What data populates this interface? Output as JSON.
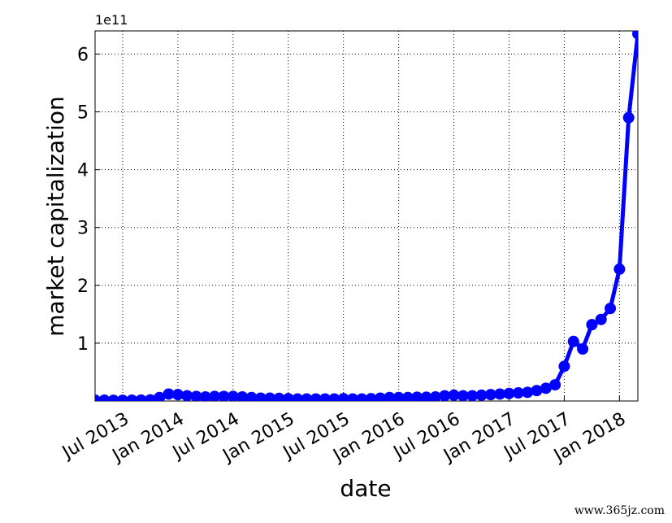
{
  "chart_data": {
    "type": "line",
    "x_label": "date",
    "y_label": "market capitalization",
    "offset_label": "1e11",
    "watermark": "www.365jz.com",
    "x": [
      "2013-04",
      "2013-05",
      "2013-06",
      "2013-07",
      "2013-08",
      "2013-09",
      "2013-10",
      "2013-11",
      "2013-12",
      "2014-01",
      "2014-02",
      "2014-03",
      "2014-04",
      "2014-05",
      "2014-06",
      "2014-07",
      "2014-08",
      "2014-09",
      "2014-10",
      "2014-11",
      "2014-12",
      "2015-01",
      "2015-02",
      "2015-03",
      "2015-04",
      "2015-05",
      "2015-06",
      "2015-07",
      "2015-08",
      "2015-09",
      "2015-10",
      "2015-11",
      "2015-12",
      "2016-01",
      "2016-02",
      "2016-03",
      "2016-04",
      "2016-05",
      "2016-06",
      "2016-07",
      "2016-08",
      "2016-09",
      "2016-10",
      "2016-11",
      "2016-12",
      "2017-01",
      "2017-02",
      "2017-03",
      "2017-04",
      "2017-05",
      "2017-06",
      "2017-07",
      "2017-08",
      "2017-09",
      "2017-10",
      "2017-11",
      "2017-12",
      "2018-01",
      "2018-02",
      "2018-03"
    ],
    "series": [
      {
        "name": "market capitalization",
        "color": "#0000ff",
        "values": [
          0.015,
          0.015,
          0.013,
          0.012,
          0.014,
          0.016,
          0.02,
          0.06,
          0.12,
          0.11,
          0.09,
          0.08,
          0.07,
          0.08,
          0.08,
          0.08,
          0.07,
          0.06,
          0.05,
          0.05,
          0.045,
          0.04,
          0.035,
          0.035,
          0.035,
          0.035,
          0.035,
          0.04,
          0.035,
          0.035,
          0.04,
          0.05,
          0.06,
          0.06,
          0.06,
          0.065,
          0.065,
          0.07,
          0.09,
          0.1,
          0.09,
          0.09,
          0.1,
          0.11,
          0.12,
          0.13,
          0.14,
          0.15,
          0.18,
          0.22,
          0.28,
          0.6,
          1.03,
          0.9,
          1.32,
          1.41,
          1.6,
          2.28,
          4.9,
          6.35
        ]
      }
    ],
    "xlim": [
      "2013-04",
      "2018-03"
    ],
    "xticks": [
      {
        "value": "2013-07",
        "label": "Jul 2013"
      },
      {
        "value": "2014-01",
        "label": "Jan 2014"
      },
      {
        "value": "2014-07",
        "label": "Jul 2014"
      },
      {
        "value": "2015-01",
        "label": "Jan 2015"
      },
      {
        "value": "2015-07",
        "label": "Jul 2015"
      },
      {
        "value": "2016-01",
        "label": "Jan 2016"
      },
      {
        "value": "2016-07",
        "label": "Jul 2016"
      },
      {
        "value": "2017-01",
        "label": "Jan 2017"
      },
      {
        "value": "2017-07",
        "label": "Jul 2017"
      },
      {
        "value": "2018-01",
        "label": "Jan 2018"
      }
    ],
    "ylim": [
      0,
      6.4
    ],
    "yticks": [
      1,
      2,
      3,
      4,
      5,
      6
    ],
    "grid": true
  }
}
